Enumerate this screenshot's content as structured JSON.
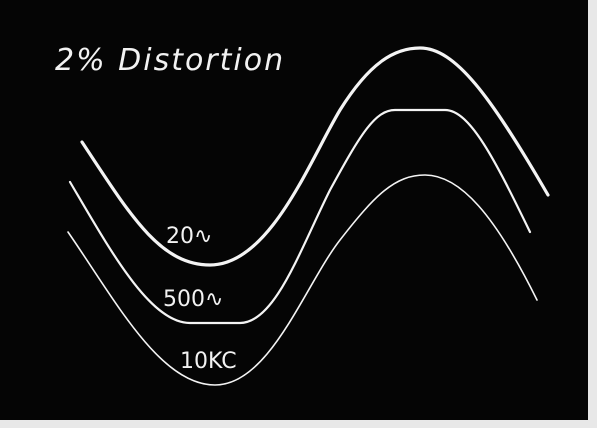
{
  "title": "2% Distortion",
  "traces": [
    {
      "label": "20∿"
    },
    {
      "label": "500∿"
    },
    {
      "label": "10KC"
    }
  ]
}
